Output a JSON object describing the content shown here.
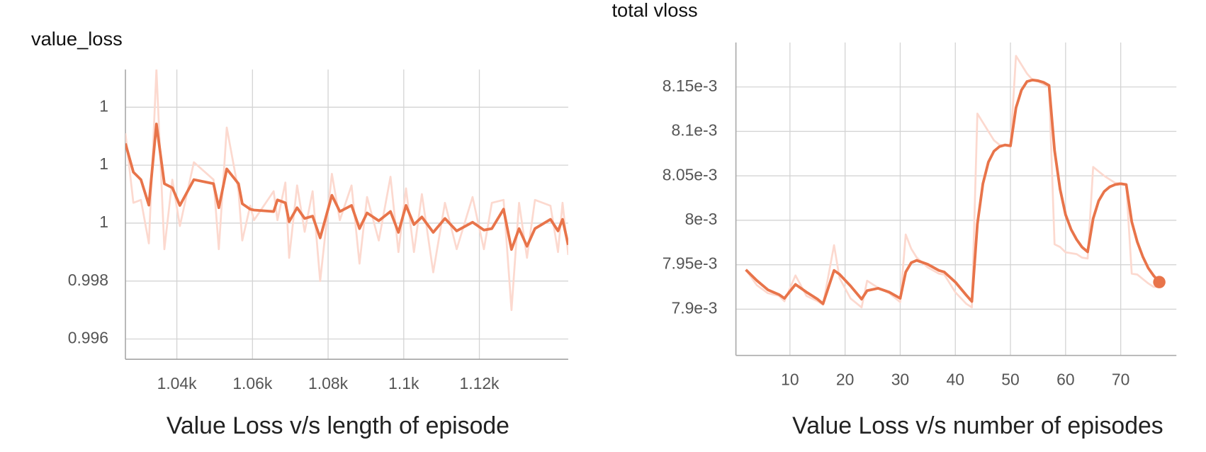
{
  "chart_data": [
    {
      "type": "line",
      "title": "value_loss",
      "caption": "Value Loss v/s length of episode",
      "x": [
        1026.4,
        1028.5,
        1030.5,
        1032.6,
        1034.6,
        1036.7,
        1038.8,
        1040.8,
        1044.5,
        1049.7,
        1051.1,
        1053.2,
        1056.3,
        1057.3,
        1059.4,
        1060.4,
        1065.6,
        1066.6,
        1068.7,
        1069.7,
        1071.8,
        1073.8,
        1075.9,
        1077.9,
        1081.0,
        1083.1,
        1086.2,
        1088.3,
        1090.3,
        1093.4,
        1096.5,
        1098.6,
        1100.6,
        1102.7,
        1104.8,
        1107.8,
        1110.9,
        1114.0,
        1118.2,
        1121.2,
        1123.3,
        1126.4,
        1128.5,
        1130.5,
        1132.6,
        1134.7,
        1138.8,
        1140.8,
        1142.0,
        1143.5
      ],
      "series": [
        {
          "color": "#fcd9cf",
          "values": [
            1.0031,
            1.0007,
            1.0008,
            0.9993,
            1.0053,
            0.9991,
            1.0015,
            0.9999,
            1.0021,
            1.0015,
            0.9991,
            1.0033,
            1.0011,
            0.9994,
            1.0006,
            1.0001,
            1.0011,
            1.0001,
            1.0014,
            0.9988,
            1.0013,
            0.9997,
            1.0011,
            0.998,
            1.0017,
            1.0001,
            1.0013,
            0.9986,
            1.0009,
            0.9994,
            1.0016,
            0.999,
            1.0012,
            0.999,
            1.001,
            0.9983,
            1.0007,
            0.9991,
            1.0009,
            0.9991,
            1.0007,
            1.0008,
            0.997,
            1.0007,
            0.9988,
            1.0008,
            1.0006,
            0.999,
            1.0007,
            0.9989
          ]
        },
        {
          "color": "#e8744a",
          "values": [
            1.00275,
            1.00176,
            1.0015,
            1.00062,
            1.00342,
            1.00136,
            1.00122,
            1.00061,
            1.0015,
            1.00136,
            1.00053,
            1.00187,
            1.00136,
            1.00067,
            1.00048,
            1.00045,
            1.0004,
            1.0008,
            1.0007,
            1.00005,
            1.00053,
            1.00016,
            1.00024,
            0.99949,
            1.00096,
            1.0004,
            1.00061,
            0.99981,
            1.00035,
            1.00008,
            1.0004,
            0.99968,
            1.00061,
            0.99995,
            1.00021,
            0.99968,
            1.00016,
            0.99973,
            1.00003,
            0.99976,
            0.99981,
            1.00048,
            0.99909,
            0.99981,
            0.9992,
            0.99981,
            1.00013,
            0.99973,
            1.00013,
            0.99925
          ]
        }
      ],
      "xlim": [
        1026.4,
        1143.5
      ],
      "xticks": [
        {
          "value": 1040,
          "label": "1.04k"
        },
        {
          "value": 1060,
          "label": "1.06k"
        },
        {
          "value": 1080,
          "label": "1.08k"
        },
        {
          "value": 1100,
          "label": "1.1k"
        },
        {
          "value": 1120,
          "label": "1.12k"
        }
      ],
      "ylim": [
        0.9953,
        1.0053
      ],
      "yticks": [
        {
          "value": 0.996,
          "label": "0.996"
        },
        {
          "value": 0.998,
          "label": "0.998"
        },
        {
          "value": 1.0,
          "label": "1"
        },
        {
          "value": 1.002,
          "label": "1"
        },
        {
          "value": 1.004,
          "label": "1"
        }
      ],
      "grid": true
    },
    {
      "type": "line",
      "title": "total vloss",
      "caption": "Value Loss v/s number of episodes",
      "x": [
        2,
        4,
        6,
        8,
        9,
        11,
        13,
        15,
        16,
        18,
        19,
        21,
        23,
        24,
        26,
        28,
        30,
        31,
        32,
        33,
        35,
        37,
        38,
        40,
        42,
        43,
        44,
        45,
        46,
        47,
        48,
        49,
        50,
        51,
        52,
        53,
        54,
        55,
        56,
        57,
        58,
        59,
        60,
        61,
        62,
        63,
        64,
        65,
        66,
        67,
        68,
        69,
        70,
        71,
        72,
        73,
        74,
        75,
        76,
        77
      ],
      "series": [
        {
          "color": "#fcd9cf",
          "values": [
            0.0079444,
            0.007927,
            0.007918,
            0.007915,
            0.007909,
            0.007938,
            0.007915,
            0.007909,
            0.007905,
            0.007972,
            0.007935,
            0.007912,
            0.007902,
            0.007932,
            0.007924,
            0.007918,
            0.007908,
            0.007984,
            0.007968,
            0.007958,
            0.007947,
            0.00794,
            0.007939,
            0.007919,
            0.007906,
            0.007902,
            0.00812,
            0.00811,
            0.0081,
            0.00809,
            0.008085,
            0.008084,
            0.008083,
            0.008185,
            0.008175,
            0.008165,
            0.008158,
            0.008156,
            0.008153,
            0.00815,
            0.007973,
            0.00797,
            0.007964,
            0.007963,
            0.007962,
            0.007958,
            0.007957,
            0.00806,
            0.008055,
            0.00805,
            0.008046,
            0.008042,
            0.008042,
            0.00804,
            0.00794,
            0.007939,
            0.007934,
            0.007929,
            0.007925,
            0.007925
          ]
        },
        {
          "color": "#e8744a",
          "values": [
            0.0079444,
            0.0079322,
            0.0079218,
            0.0079165,
            0.0079122,
            0.0079279,
            0.0079192,
            0.0079113,
            0.0079061,
            0.0079436,
            0.0079392,
            0.0079261,
            0.0079113,
            0.0079209,
            0.0079235,
            0.0079192,
            0.0079122,
            0.0079418,
            0.0079523,
            0.0079549,
            0.0079505,
            0.0079436,
            0.0079418,
            0.0079305,
            0.0079157,
            0.0079087,
            0.0079958,
            0.0080411,
            0.0080655,
            0.0080777,
            0.0080829,
            0.0080847,
            0.0080838,
            0.0081265,
            0.0081465,
            0.0081561,
            0.0081578,
            0.008157,
            0.0081552,
            0.0081517,
            0.0080786,
            0.008035,
            0.0080063,
            0.0079897,
            0.0079784,
            0.0079697,
            0.0079645,
            0.0080019,
            0.0080219,
            0.0080324,
            0.0080376,
            0.0080402,
            0.0080411,
            0.0080402,
            0.0079984,
            0.0079758,
            0.0079592,
            0.0079462,
            0.0079375,
            0.0079305
          ]
        }
      ],
      "xlim": [
        0.2,
        80.1
      ],
      "xticks": [
        10,
        20,
        30,
        40,
        50,
        60,
        70
      ],
      "ylim": [
        0.007848,
        0.0082
      ],
      "yticks": [
        {
          "value": 0.0079,
          "label": "7.9e-3"
        },
        {
          "value": 0.00795,
          "label": "7.95e-3"
        },
        {
          "value": 0.008,
          "label": "8e-3"
        },
        {
          "value": 0.00805,
          "label": "8.05e-3"
        },
        {
          "value": 0.0081,
          "label": "8.1e-3"
        },
        {
          "value": 0.00815,
          "label": "8.15e-3"
        }
      ],
      "grid": true
    }
  ]
}
